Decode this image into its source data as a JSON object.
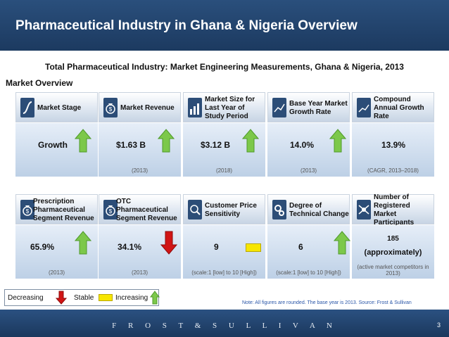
{
  "header": {
    "title": "Pharmaceutical Industry in Ghana & Nigeria Overview"
  },
  "subtitle": "Total Pharmaceutical Industry: Market Engineering Measurements, Ghana & Nigeria, 2013",
  "section": "Market Overview",
  "row1": [
    {
      "label": "Market Stage",
      "value": "Growth",
      "note": "",
      "trend": "increasing",
      "icon": "market-stage-icon"
    },
    {
      "label": "Market Revenue",
      "value": "$1.63 B",
      "note": "(2013)",
      "trend": "increasing",
      "icon": "money-bag-icon"
    },
    {
      "label": "Market Size for Last Year of Study Period",
      "value": "$3.12 B",
      "note": "(2018)",
      "trend": "increasing",
      "icon": "bar-chart-icon"
    },
    {
      "label": "Base Year Market Growth Rate",
      "value": "14.0%",
      "note": "(2013)",
      "trend": "increasing",
      "icon": "growth-line-icon"
    },
    {
      "label": "Compound Annual Growth Rate",
      "value": "13.9%",
      "note": "(CAGR, 2013–2018)",
      "trend": "none",
      "icon": "cagr-line-icon"
    }
  ],
  "row2": [
    {
      "label": "Prescription Pharmaceutical Segment Revenue",
      "value": "65.9%",
      "note": "(2013)",
      "trend": "increasing",
      "icon": "money-bag-icon"
    },
    {
      "label": "OTC Pharmaceutical Segment Revenue",
      "value": "34.1%",
      "note": "(2013)",
      "trend": "decreasing",
      "icon": "money-bag-icon"
    },
    {
      "label": "Customer Price Sensitivity",
      "value": "9",
      "note": "(scale:1 [low] to 10 [High])",
      "trend": "stable",
      "icon": "magnifier-price-icon"
    },
    {
      "label": "Degree of Technical Change",
      "value": "6",
      "note": "(scale:1 [low] to 10 [High])",
      "trend": "increasing",
      "icon": "gears-icon"
    },
    {
      "label": "Number of Registered Market Participants",
      "value": "185",
      "value2": "(approximately)",
      "note": "(active market competitors in 2013)",
      "trend": "none",
      "icon": "participants-icon"
    }
  ],
  "legend": {
    "decreasing": "Decreasing",
    "stable": "Stable",
    "increasing": "Increasing"
  },
  "footnote": "Note: All figures are rounded. The base year is 2013. Source: Frost & Sullivan",
  "footer": {
    "brand": "F R O S T  &  S U L L I V A N",
    "page": "3"
  },
  "colors": {
    "header": "#1f416a",
    "increasing": "#7cc84a",
    "decreasing": "#d11414",
    "stable": "#f7e600"
  }
}
